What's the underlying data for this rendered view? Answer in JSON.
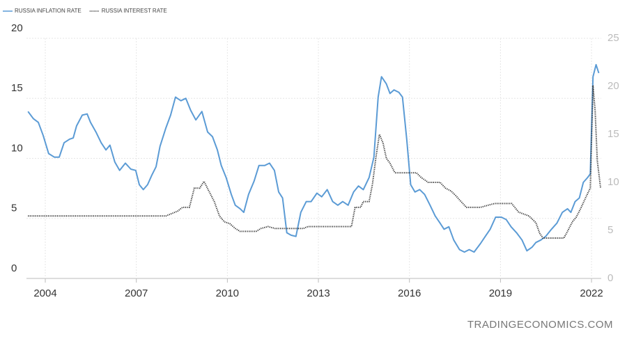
{
  "chart_data": {
    "type": "line",
    "watermark": "TRADINGECONOMICS.COM",
    "xlim": [
      2003.38,
      2022.32
    ],
    "xticks": [
      2004,
      2007,
      2010,
      2013,
      2016,
      2019,
      2022
    ],
    "ylim": [
      0,
      20
    ],
    "yticks": [
      0,
      5,
      10,
      15,
      20
    ],
    "y2lim": [
      0,
      25
    ],
    "y2ticks": [
      0,
      5,
      10,
      15,
      20,
      25
    ],
    "grid": true,
    "legend": "top-left",
    "series": [
      {
        "name": "RUSSIA INFLATION RATE",
        "color": "#5b9bd5",
        "style": "solid",
        "x": [
          2003.43,
          2003.61,
          2003.77,
          2003.93,
          2004.11,
          2004.3,
          2004.46,
          2004.62,
          2004.8,
          2004.92,
          2005.03,
          2005.22,
          2005.38,
          2005.49,
          2005.67,
          2005.84,
          2006.0,
          2006.13,
          2006.29,
          2006.45,
          2006.64,
          2006.82,
          2006.98,
          2007.1,
          2007.23,
          2007.37,
          2007.51,
          2007.65,
          2007.78,
          2007.97,
          2008.13,
          2008.29,
          2008.47,
          2008.63,
          2008.79,
          2008.96,
          2009.16,
          2009.35,
          2009.51,
          2009.67,
          2009.8,
          2009.96,
          2010.13,
          2010.26,
          2010.42,
          2010.54,
          2010.7,
          2010.88,
          2011.04,
          2011.23,
          2011.39,
          2011.55,
          2011.69,
          2011.82,
          2011.96,
          2012.1,
          2012.26,
          2012.42,
          2012.6,
          2012.76,
          2012.95,
          2013.11,
          2013.29,
          2013.47,
          2013.64,
          2013.8,
          2013.98,
          2014.16,
          2014.32,
          2014.48,
          2014.67,
          2014.83,
          2014.97,
          2015.08,
          2015.24,
          2015.36,
          2015.49,
          2015.65,
          2015.77,
          2015.91,
          2016.04,
          2016.18,
          2016.34,
          2016.5,
          2016.68,
          2016.85,
          2017.01,
          2017.14,
          2017.3,
          2017.46,
          2017.65,
          2017.81,
          2017.97,
          2018.13,
          2018.34,
          2018.5,
          2018.66,
          2018.84,
          2019.03,
          2019.19,
          2019.35,
          2019.53,
          2019.71,
          2019.87,
          2020.04,
          2020.17,
          2020.33,
          2020.49,
          2020.68,
          2020.86,
          2021.04,
          2021.21,
          2021.32,
          2021.46,
          2021.6,
          2021.73,
          2021.87,
          2021.96,
          2022.05,
          2022.15,
          2022.24
        ],
        "values": [
          13.9,
          13.3,
          13.0,
          11.9,
          10.4,
          10.1,
          10.1,
          11.3,
          11.6,
          11.7,
          12.7,
          13.6,
          13.7,
          13.0,
          12.2,
          11.3,
          10.7,
          11.1,
          9.7,
          9.0,
          9.6,
          9.1,
          9.0,
          7.8,
          7.4,
          7.8,
          8.6,
          9.3,
          11.0,
          12.5,
          13.6,
          15.1,
          14.8,
          15.0,
          14.0,
          13.2,
          13.9,
          12.2,
          11.8,
          10.7,
          9.4,
          8.4,
          7.0,
          6.1,
          5.8,
          5.5,
          7.0,
          8.1,
          9.4,
          9.4,
          9.6,
          9.0,
          7.2,
          6.7,
          3.8,
          3.6,
          3.5,
          5.5,
          6.4,
          6.4,
          7.1,
          6.8,
          7.4,
          6.4,
          6.1,
          6.4,
          6.1,
          7.2,
          7.7,
          7.4,
          8.4,
          10.1,
          15.1,
          16.8,
          16.2,
          15.4,
          15.7,
          15.5,
          15.1,
          11.6,
          7.8,
          7.2,
          7.4,
          7.0,
          6.1,
          5.2,
          4.6,
          4.1,
          4.3,
          3.2,
          2.4,
          2.2,
          2.4,
          2.2,
          2.9,
          3.5,
          4.1,
          5.1,
          5.1,
          4.9,
          4.3,
          3.8,
          3.2,
          2.3,
          2.6,
          3.0,
          3.2,
          3.5,
          4.1,
          4.6,
          5.5,
          5.8,
          5.5,
          6.4,
          6.7,
          8.0,
          8.4,
          8.7,
          16.8,
          17.8,
          17.1
        ]
      },
      {
        "name": "RUSSIA INTEREST RATE",
        "color": "#333333",
        "style": "dotted",
        "axis": "y2",
        "x": [
          2003.43,
          2007.97,
          2008.13,
          2008.36,
          2008.52,
          2008.75,
          2008.91,
          2009.09,
          2009.23,
          2009.39,
          2009.57,
          2009.74,
          2009.9,
          2010.08,
          2010.26,
          2010.42,
          2010.95,
          2011.11,
          2011.34,
          2011.57,
          2012.51,
          2012.65,
          2014.09,
          2014.21,
          2014.39,
          2014.48,
          2014.67,
          2014.78,
          2014.9,
          2015.01,
          2015.13,
          2015.24,
          2015.36,
          2015.52,
          2016.23,
          2016.39,
          2016.62,
          2017.01,
          2017.19,
          2017.37,
          2017.53,
          2017.7,
          2017.88,
          2018.34,
          2018.57,
          2018.8,
          2019.37,
          2019.6,
          2019.94,
          2020.17,
          2020.29,
          2020.4,
          2021.09,
          2021.21,
          2021.37,
          2021.5,
          2021.66,
          2021.82,
          2021.96,
          2022.05,
          2022.12,
          2022.19,
          2022.3
        ],
        "values": [
          6.5,
          6.5,
          6.7,
          7.0,
          7.4,
          7.4,
          9.4,
          9.4,
          10.1,
          9.1,
          8.0,
          6.5,
          5.9,
          5.7,
          5.2,
          4.9,
          4.9,
          5.2,
          5.4,
          5.2,
          5.2,
          5.4,
          5.4,
          7.4,
          7.4,
          8.0,
          8.0,
          9.8,
          12.7,
          15.0,
          14.1,
          12.5,
          12.0,
          11.0,
          11.0,
          10.5,
          10.0,
          10.0,
          9.4,
          9.1,
          8.6,
          8.0,
          7.4,
          7.4,
          7.6,
          7.8,
          7.8,
          6.9,
          6.5,
          5.8,
          4.7,
          4.2,
          4.2,
          4.9,
          5.9,
          6.4,
          7.4,
          8.5,
          9.4,
          20.1,
          17.4,
          12.3,
          9.4
        ]
      }
    ]
  }
}
